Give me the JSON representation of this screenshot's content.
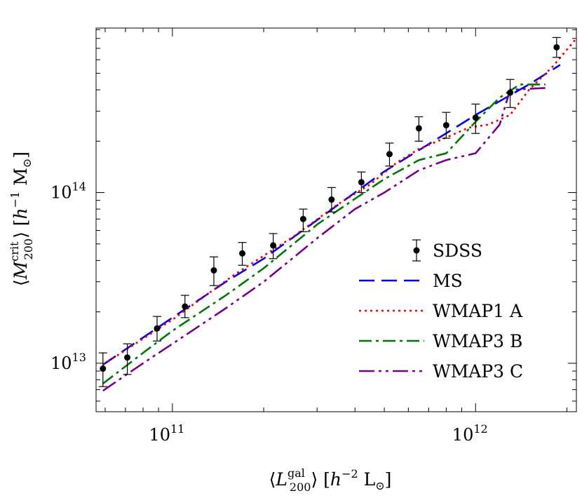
{
  "chart_data": {
    "type": "line",
    "scale": {
      "x": "log",
      "y": "log"
    },
    "xlim": [
      56000000000.0,
      2150000000000.0
    ],
    "ylim": [
      5200000000000.0,
      920000000000000.0
    ],
    "x_ticks": [
      {
        "value": 100000000000.0,
        "mantissa": "10",
        "exponent": "11"
      },
      {
        "value": 1000000000000.0,
        "mantissa": "10",
        "exponent": "12"
      }
    ],
    "y_ticks": [
      {
        "value": 10000000000000.0,
        "mantissa": "10",
        "exponent": "13"
      },
      {
        "value": 100000000000000.0,
        "mantissa": "10",
        "exponent": "14"
      }
    ],
    "xlabel": {
      "open": "⟨",
      "var": "L",
      "sub": "200",
      "sup": "gal",
      "close": "⟩ [",
      "unit_var": "h",
      "unit_exp": "−2",
      "unit_tail": " L",
      "unit_sub": "⊙",
      "end": "]"
    },
    "ylabel": {
      "open": "⟨",
      "var": "M",
      "sub": "200",
      "sup": "crit",
      "close": "⟩ [",
      "unit_var": "h",
      "unit_exp": "−1",
      "unit_tail": " M",
      "unit_sub": "⊙",
      "end": "]"
    },
    "series": [
      {
        "name": "SDSS",
        "kind": "points",
        "color": "#000000",
        "x": [
          59000000000.0,
          71000000000.0,
          89000000000.0,
          110000000000.0,
          137000000000.0,
          170000000000.0,
          215000000000.0,
          270000000000.0,
          335000000000.0,
          420000000000.0,
          520000000000.0,
          650000000000.0,
          800000000000.0,
          1000000000000.0,
          1300000000000.0,
          1850000000000.0
        ],
        "y": [
          9300000000000.0,
          10800000000000.0,
          16000000000000.0,
          21500000000000.0,
          35000000000000.0,
          44000000000000.0,
          49000000000000.0,
          70000000000000.0,
          91000000000000.0,
          115000000000000.0,
          168000000000000.0,
          238000000000000.0,
          248000000000000.0,
          275000000000000.0,
          385000000000000.0,
          710000000000000.0
        ],
        "y_low": [
          7300000000000.0,
          8600000000000.0,
          13500000000000.0,
          18500000000000.0,
          28500000000000.0,
          37500000000000.0,
          41000000000000.0,
          59000000000000.0,
          77000000000000.0,
          100000000000000.0,
          143000000000000.0,
          200000000000000.0,
          208000000000000.0,
          222000000000000.0,
          315000000000000.0,
          620000000000000.0
        ],
        "y_high": [
          11500000000000.0,
          13000000000000.0,
          18800000000000.0,
          25000000000000.0,
          42000000000000.0,
          51000000000000.0,
          57500000000000.0,
          80000000000000.0,
          107000000000000.0,
          132000000000000.0,
          195000000000000.0,
          278000000000000.0,
          295000000000000.0,
          330000000000000.0,
          460000000000000.0,
          810000000000000.0
        ]
      },
      {
        "name": "MS",
        "kind": "line",
        "color": "#0000ee",
        "dash": "22 10",
        "x": [
          59000000000.0,
          100000000000.0,
          150000000000.0,
          200000000000.0,
          300000000000.0,
          400000000000.0,
          500000000000.0,
          700000000000.0,
          1000000000000.0,
          1500000000000.0,
          1900000000000.0
        ],
        "y": [
          9800000000000.0,
          18500000000000.0,
          30000000000000.0,
          41000000000000.0,
          69000000000000.0,
          100000000000000.0,
          133000000000000.0,
          192000000000000.0,
          285000000000000.0,
          430000000000000.0,
          560000000000000.0
        ]
      },
      {
        "name": "WMAP1 A",
        "kind": "line",
        "color": "#ee0000",
        "dash": "3 5",
        "x": [
          59000000000.0,
          100000000000.0,
          160000000000.0,
          250000000000.0,
          350000000000.0,
          450000000000.0,
          550000000000.0,
          650000000000.0,
          800000000000.0,
          950000000000.0,
          1100000000000.0,
          1300000000000.0,
          1500000000000.0,
          1800000000000.0,
          2150000000000.0
        ],
        "y": [
          9800000000000.0,
          18000000000000.0,
          33000000000000.0,
          55000000000000.0,
          85000000000000.0,
          112000000000000.0,
          150000000000000.0,
          180000000000000.0,
          210000000000000.0,
          240000000000000.0,
          250000000000000.0,
          285000000000000.0,
          400000000000000.0,
          550000000000000.0,
          800000000000000.0
        ]
      },
      {
        "name": "WMAP3 B",
        "kind": "line",
        "color": "#007700",
        "dash": "18 6 4 6",
        "x": [
          59000000000.0,
          80000000000.0,
          100000000000.0,
          150000000000.0,
          200000000000.0,
          300000000000.0,
          400000000000.0,
          500000000000.0,
          650000000000.0,
          800000000000.0,
          1000000000000.0,
          1200000000000.0,
          1400000000000.0,
          1700000000000.0
        ],
        "y": [
          7600000000000.0,
          11500000000000.0,
          15500000000000.0,
          25000000000000.0,
          36000000000000.0,
          65000000000000.0,
          92000000000000.0,
          120000000000000.0,
          155000000000000.0,
          170000000000000.0,
          260000000000000.0,
          360000000000000.0,
          430000000000000.0,
          430000000000000.0
        ]
      },
      {
        "name": "WMAP3 C",
        "kind": "line",
        "color": "#77008a",
        "dash": "22 6 4 6 4 6",
        "x": [
          59000000000.0,
          80000000000.0,
          100000000000.0,
          150000000000.0,
          200000000000.0,
          300000000000.0,
          400000000000.0,
          500000000000.0,
          650000000000.0,
          800000000000.0,
          1000000000000.0,
          1200000000000.0,
          1300000000000.0,
          1700000000000.0
        ],
        "y": [
          6900000000000.0,
          10000000000000.0,
          13000000000000.0,
          21000000000000.0,
          30000000000000.0,
          54000000000000.0,
          80000000000000.0,
          100000000000000.0,
          135000000000000.0,
          155000000000000.0,
          170000000000000.0,
          250000000000000.0,
          400000000000000.0,
          410000000000000.0
        ]
      }
    ],
    "legend": {
      "placement": "bottom-right",
      "entries": [
        "SDSS",
        "MS",
        "WMAP1 A",
        "WMAP3 B",
        "WMAP3 C"
      ]
    }
  }
}
